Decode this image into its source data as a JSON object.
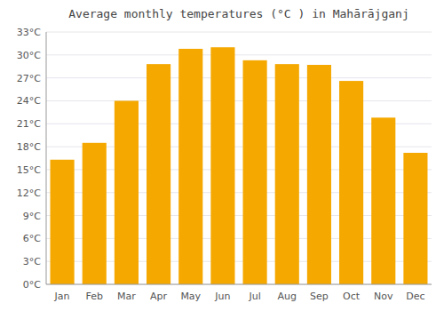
{
  "chart_data": {
    "type": "bar",
    "title": "Average monthly temperatures (°C ) in Mahārājganj",
    "categories": [
      "Jan",
      "Feb",
      "Mar",
      "Apr",
      "May",
      "Jun",
      "Jul",
      "Aug",
      "Sep",
      "Oct",
      "Nov",
      "Dec"
    ],
    "values": [
      16.3,
      18.5,
      24.0,
      28.8,
      30.8,
      31.0,
      29.3,
      28.8,
      28.7,
      26.6,
      21.8,
      17.2
    ],
    "color": "#F5A800",
    "ylim": [
      0,
      33
    ],
    "yticks": [
      {
        "value": 0,
        "label": "0°C"
      },
      {
        "value": 3,
        "label": "3°C"
      },
      {
        "value": 6,
        "label": "6°C"
      },
      {
        "value": 9,
        "label": "9°C"
      },
      {
        "value": 12,
        "label": "12°C"
      },
      {
        "value": 15,
        "label": "15°C"
      },
      {
        "value": 18,
        "label": "18°C"
      },
      {
        "value": 21,
        "label": "21°C"
      },
      {
        "value": 24,
        "label": "24°C"
      },
      {
        "value": 27,
        "label": "27°C"
      },
      {
        "value": 30,
        "label": "30°C"
      },
      {
        "value": 33,
        "label": "33°C"
      }
    ],
    "grid": true
  }
}
